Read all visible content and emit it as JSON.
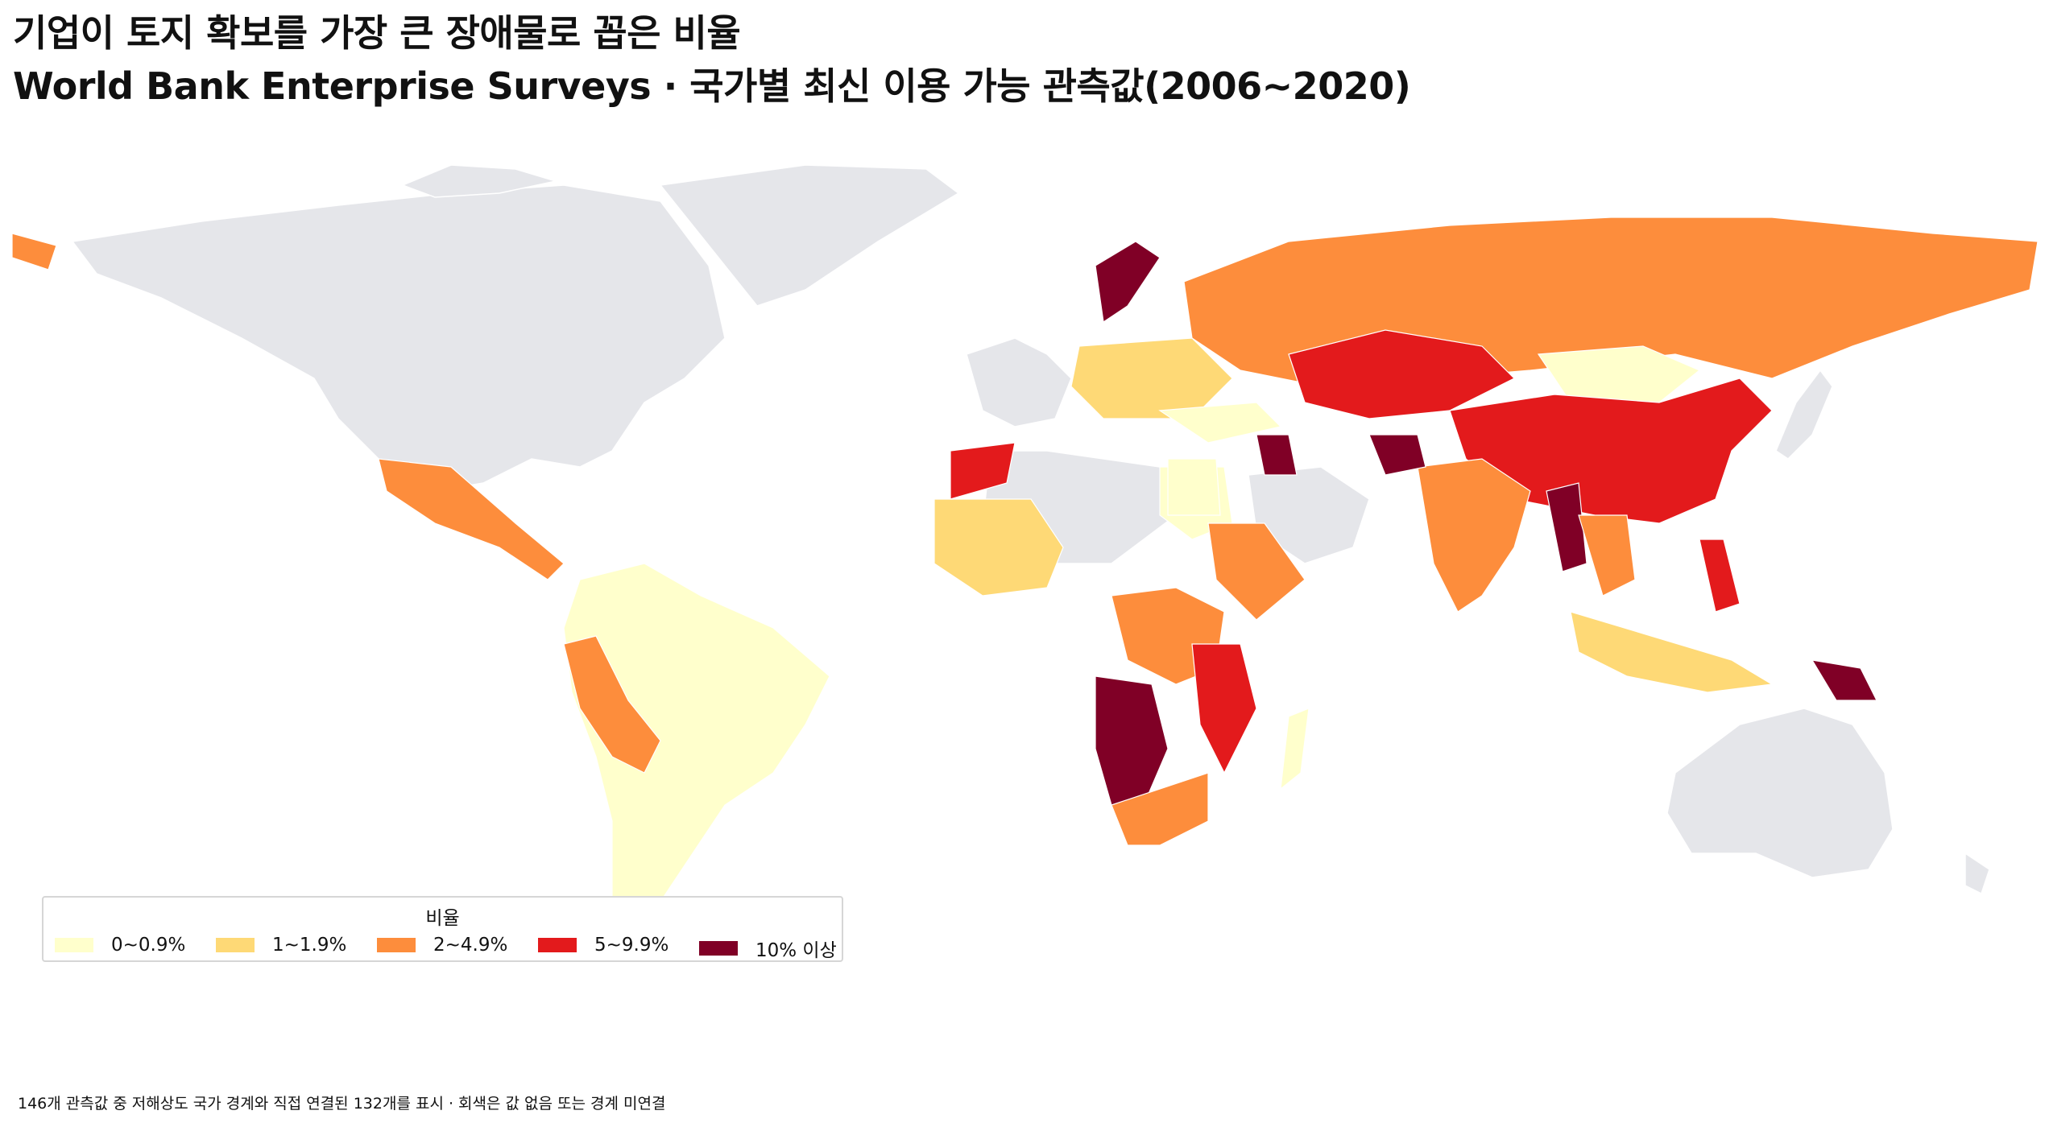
{
  "title": {
    "line1": "기업이 토지 확보를 가장 큰 장애물로 꼽은 비율",
    "line2": "World Bank Enterprise Surveys · 국가별 최신 이용 가능 관측값(2006~2020)"
  },
  "legend": {
    "title": "비율",
    "items": [
      {
        "label": "0~0.9%",
        "color": "#ffffcc"
      },
      {
        "label": "1~1.9%",
        "color": "#fed976"
      },
      {
        "label": "2~4.9%",
        "color": "#fd8d3c"
      },
      {
        "label": "5~9.9%",
        "color": "#e31a1c"
      },
      {
        "label": "10% 이상",
        "color": "#800026"
      }
    ]
  },
  "no_data_color": "#e5e6ea",
  "footnote": "146개 관측값 중 저해상도 국가 경계와 직접 연결된 132개를 표시 · 회색은 값 없음 또는 경계 미연결"
}
